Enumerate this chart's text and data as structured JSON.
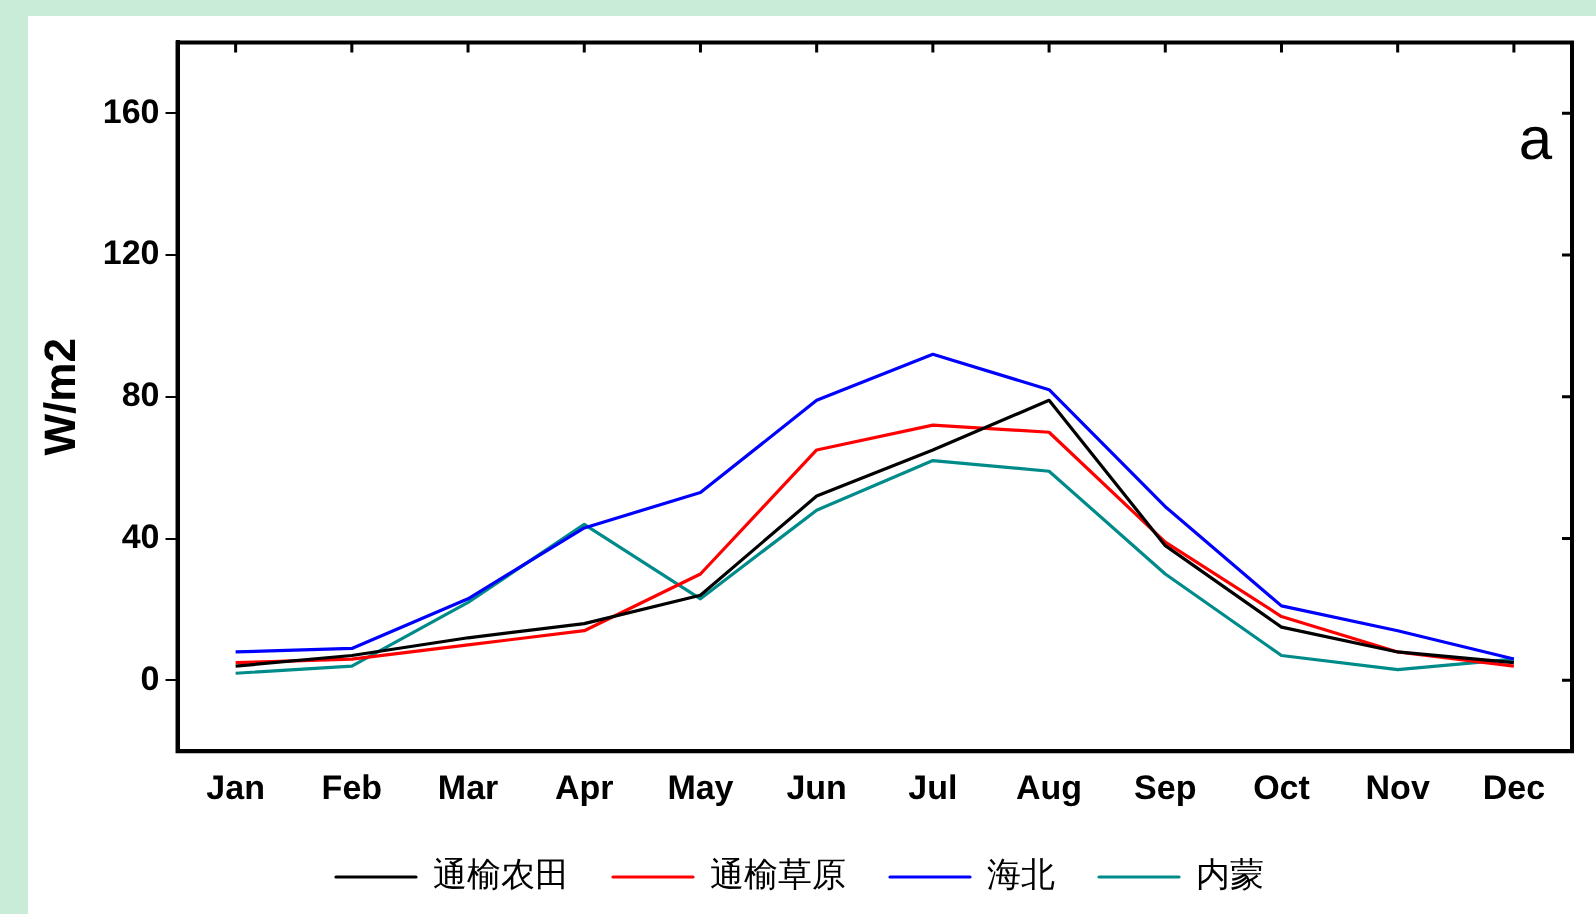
{
  "chart_data": {
    "type": "line",
    "ylabel": "W/m2",
    "annotations": [
      "a"
    ],
    "categories": [
      "Jan",
      "Feb",
      "Mar",
      "Apr",
      "May",
      "Jun",
      "Jul",
      "Aug",
      "Sep",
      "Oct",
      "Nov",
      "Dec"
    ],
    "series": [
      {
        "name": "通榆农田",
        "color": "#000000",
        "values": [
          4,
          7,
          12,
          16,
          24,
          52,
          65,
          79,
          38,
          15,
          8,
          5
        ]
      },
      {
        "name": "通榆草原",
        "color": "#ff0000",
        "values": [
          5,
          6,
          10,
          14,
          30,
          65,
          72,
          70,
          39,
          18,
          8,
          4
        ]
      },
      {
        "name": "海北",
        "color": "#0000ff",
        "values": [
          8,
          9,
          23,
          43,
          53,
          79,
          92,
          82,
          49,
          21,
          14,
          6
        ]
      },
      {
        "name": "内蒙",
        "color": "#008b8b",
        "values": [
          2,
          4,
          22,
          44,
          23,
          48,
          62,
          59,
          30,
          7,
          3,
          6
        ]
      }
    ],
    "ylim": [
      -20,
      180
    ],
    "yticks": [
      0,
      40,
      80,
      120,
      160
    ],
    "grid": false,
    "legend": "bottom",
    "marker": "none",
    "line_style": "solid"
  }
}
